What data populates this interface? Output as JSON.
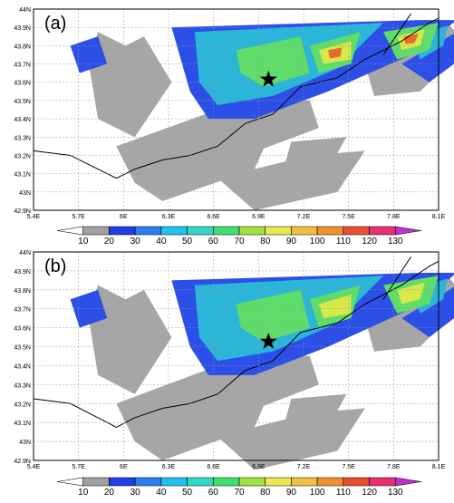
{
  "figure": {
    "panels": [
      {
        "label": "(a)",
        "y_ticks": [
          "44N",
          "43.9N",
          "43.8N",
          "43.7N",
          "43.6N",
          "43.5N",
          "43.4N",
          "43.3N",
          "43.2N",
          "43.1N",
          "43N",
          "42.9N"
        ],
        "x_ticks": [
          "5.4E",
          "5.7E",
          "6E",
          "6.3E",
          "6.6E",
          "6.9E",
          "7.2E",
          "7.5E",
          "7.8E",
          "8.1E"
        ],
        "marker": "star-icon"
      },
      {
        "label": "(b)",
        "y_ticks": [
          "44N",
          "43.9N",
          "43.8N",
          "43.7N",
          "43.6N",
          "43.5N",
          "43.4N",
          "43.3N",
          "43.2N",
          "43.1N",
          "43N",
          "42.9N"
        ],
        "x_ticks": [
          "5.4E",
          "5.7E",
          "6E",
          "6.3E",
          "6.6E",
          "6.9E",
          "7.2E",
          "7.5E",
          "7.8E",
          "8.1E"
        ],
        "marker": "star-icon"
      }
    ],
    "colorbar": {
      "labels": [
        "10",
        "20",
        "30",
        "40",
        "50",
        "60",
        "70",
        "80",
        "90",
        "100",
        "110",
        "120",
        "130"
      ],
      "colors": [
        "#ffffff",
        "#a0a0a0",
        "#1f3ee6",
        "#2b7cf0",
        "#20c0f0",
        "#30d8c8",
        "#40e070",
        "#a0e040",
        "#e8e850",
        "#f0c040",
        "#f09030",
        "#e85030",
        "#e83070",
        "#c030d0"
      ]
    }
  }
}
